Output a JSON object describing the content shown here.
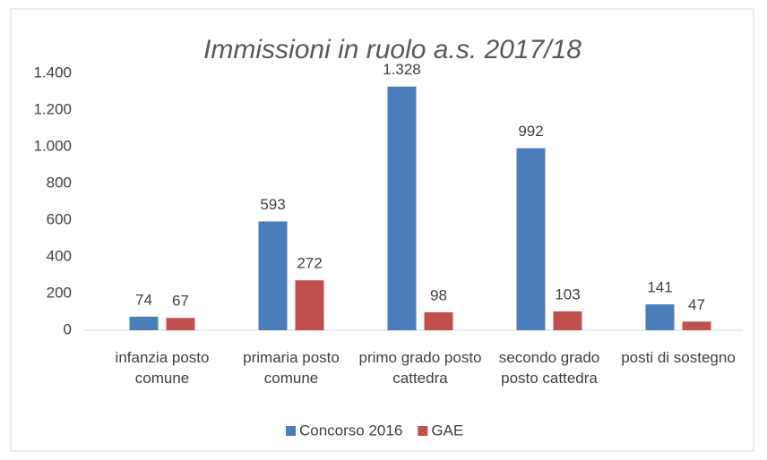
{
  "chart_data": {
    "type": "bar",
    "title": "Immissioni in ruolo a.s. 2017/18",
    "categories": [
      "infanzia posto comune",
      "primaria posto comune",
      "primo grado posto cattedra",
      "secondo grado posto cattedra",
      "posti di sostegno"
    ],
    "series": [
      {
        "name": "Concorso 2016",
        "color": "#4a7ebb",
        "values": [
          74,
          593,
          1328,
          992,
          141
        ],
        "value_labels": [
          "74",
          "593",
          "1.328",
          "992",
          "141"
        ]
      },
      {
        "name": "GAE",
        "color": "#c0504d",
        "values": [
          67,
          272,
          98,
          103,
          47
        ],
        "value_labels": [
          "67",
          "272",
          "98",
          "103",
          "47"
        ]
      }
    ],
    "ylim": [
      0,
      1400
    ],
    "yticks": [
      0,
      200,
      400,
      600,
      800,
      {
        "value": 1000,
        "label": "1.000"
      },
      {
        "value": 1200,
        "label": "1.200"
      },
      {
        "value": 1400,
        "label": "1.400"
      }
    ],
    "grid": false,
    "legend": "bottom"
  }
}
